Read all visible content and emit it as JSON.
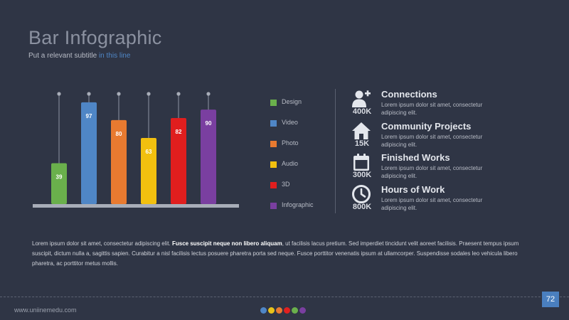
{
  "slide": {
    "title": "Bar Infographic",
    "subtitle_plain": "Put a relevant subtitle ",
    "subtitle_accent": "in this line",
    "page_number": "72",
    "footer_url": "www.uniinemedu.com",
    "footer_dot_colors": [
      "#4f86c6",
      "#e8c21a",
      "#e87a30",
      "#e02020",
      "#6ab04c",
      "#7a3fa0"
    ]
  },
  "chart_data": {
    "type": "bar",
    "categories": [
      "Design",
      "Video",
      "Photo",
      "Audio",
      "3D",
      "Infographic"
    ],
    "values": [
      39,
      97,
      80,
      63,
      82,
      90
    ],
    "colors": [
      "#6ab04c",
      "#4f86c6",
      "#e87a30",
      "#f2c00f",
      "#e01e1e",
      "#7a3fa0"
    ],
    "ylim": [
      0,
      100
    ],
    "title": "",
    "xlabel": "",
    "ylabel": "",
    "grid": false,
    "legend": "right"
  },
  "stats": [
    {
      "icon": "user-add-icon",
      "value": "400K",
      "title": "Connections",
      "desc": "Lorem ipsum dolor sit amet, consectetur adipiscing elit."
    },
    {
      "icon": "home-icon",
      "value": "15K",
      "title": "Community Projects",
      "desc": "Lorem ipsum dolor sit amet, consectetur adipiscing elit."
    },
    {
      "icon": "calendar-icon",
      "value": "300K",
      "title": "Finished Works",
      "desc": "Lorem ipsum dolor sit amet, consectetur adipiscing elit."
    },
    {
      "icon": "clock-icon",
      "value": "800K",
      "title": "Hours of Work",
      "desc": "Lorem ipsum dolor sit amet, consectetur adipiscing elit."
    }
  ],
  "body": {
    "part1": "Lorem ipsum dolor sit amet, consectetur adipiscing elit. ",
    "bold": "Fusce suscipit neque non libero aliquam",
    "part2": ", ut facilisis lacus pretium. Sed imperdiet tincidunt velit aoreet facilisis. Praesent tempus ipsum suscipit, dictum nulla a, sagittis sapien. Curabitur a nisl facilisis lectus posuere pharetra porta sed neque. Fusce porttitor venenatis ipsum at ullamcorper. Suspendisse sodales leo vehicula libero pharetra, ac porttitor metus mollis."
  }
}
